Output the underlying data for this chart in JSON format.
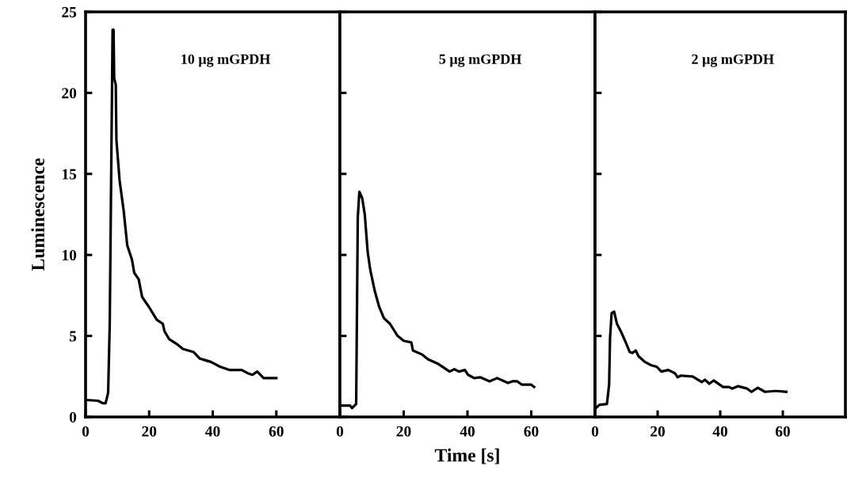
{
  "chart_data": [
    {
      "type": "line",
      "ylabel": "Luminescence",
      "annotations": [
        "10 μg mGPDH"
      ],
      "xlim": [
        0,
        80
      ],
      "xticks": [
        0,
        20,
        40,
        60
      ],
      "ylim": [
        0,
        25
      ],
      "yticks": [
        0,
        5,
        10,
        15,
        20,
        25
      ],
      "line_style": "solid",
      "series": [
        {
          "color": "#000000",
          "x": [
            0,
            3.9,
            5.4,
            6.3,
            7.1,
            7.6,
            8.1,
            8.5,
            8.8,
            9.0,
            9.5,
            9.7,
            10.7,
            12.0,
            13.1,
            14.6,
            15.3,
            16.7,
            17.8,
            19.9,
            22.4,
            24.3,
            24.8,
            26.3,
            28.7,
            30.6,
            34,
            36,
            39.4,
            42.3,
            45.2,
            49.1,
            51,
            52.5,
            54,
            56,
            57.9,
            60
          ],
          "values": [
            1.05,
            1.0,
            0.85,
            0.85,
            1.5,
            5.7,
            15.8,
            23.9,
            23.9,
            20.9,
            20.5,
            17.1,
            14.6,
            12.7,
            10.6,
            9.7,
            8.9,
            8.5,
            7.4,
            6.8,
            6.0,
            5.75,
            5.3,
            4.8,
            4.5,
            4.2,
            4.0,
            3.6,
            3.4,
            3.1,
            2.9,
            2.9,
            2.7,
            2.6,
            2.8,
            2.4,
            2.4,
            2.4
          ]
        }
      ]
    },
    {
      "type": "line",
      "xlabel": "Time [s]",
      "annotations": [
        "5 μg mGPDH"
      ],
      "xlim": [
        0,
        80
      ],
      "xticks": [
        0,
        20,
        40,
        60
      ],
      "ylim": [
        0,
        25
      ],
      "yticks": [
        0,
        5,
        10,
        15,
        20,
        25
      ],
      "tick_labels": "x",
      "line_style": "solid",
      "series": [
        {
          "color": "#000000",
          "x": [
            0,
            3.2,
            3.8,
            5.1,
            5.6,
            6.1,
            7,
            7.8,
            8.7,
            9.5,
            10.9,
            12.3,
            13.8,
            15.7,
            18.1,
            20,
            22.4,
            22.9,
            25.8,
            27.7,
            30.6,
            34.4,
            35.9,
            37.3,
            39.2,
            40.2,
            42.1,
            44,
            46.9,
            49.3,
            52.7,
            54.1,
            55.6,
            57,
            59.9,
            60.9
          ],
          "values": [
            0.7,
            0.7,
            0.55,
            0.8,
            12.3,
            13.9,
            13.5,
            12.5,
            10.2,
            9.1,
            7.8,
            6.8,
            6.1,
            5.75,
            5.0,
            4.7,
            4.6,
            4.1,
            3.85,
            3.55,
            3.3,
            2.8,
            2.95,
            2.8,
            2.9,
            2.6,
            2.4,
            2.45,
            2.2,
            2.4,
            2.1,
            2.2,
            2.2,
            2.0,
            2.0,
            1.85
          ]
        }
      ]
    },
    {
      "type": "line",
      "annotations": [
        "2 μg mGPDH"
      ],
      "xlim": [
        0,
        80
      ],
      "xticks": [
        0,
        20,
        40,
        60
      ],
      "ylim": [
        0,
        25
      ],
      "yticks": [
        0,
        5,
        10,
        15,
        20,
        25
      ],
      "tick_labels": "x",
      "line_style": "solid",
      "series": [
        {
          "color": "#000000",
          "x": [
            0.3,
            1.4,
            3.8,
            4.5,
            4.8,
            5.3,
            6.1,
            7,
            8.2,
            9.6,
            11.1,
            12,
            13,
            13.9,
            15.9,
            17.8,
            19.7,
            21.2,
            23.4,
            25.5,
            26.4,
            27.4,
            31.2,
            34.1,
            35.1,
            36.5,
            37.9,
            40.9,
            42.8,
            43.8,
            45.7,
            48.6,
            50,
            52,
            54.3,
            57.2,
            58.2,
            61.1
          ],
          "values": [
            0.55,
            0.75,
            0.8,
            2.0,
            4.9,
            6.4,
            6.5,
            5.75,
            5.3,
            4.7,
            4.0,
            3.95,
            4.1,
            3.75,
            3.4,
            3.2,
            3.1,
            2.8,
            2.9,
            2.7,
            2.45,
            2.55,
            2.5,
            2.15,
            2.3,
            2.05,
            2.25,
            1.85,
            1.85,
            1.75,
            1.9,
            1.75,
            1.55,
            1.8,
            1.55,
            1.6,
            1.6,
            1.55
          ]
        }
      ]
    }
  ]
}
